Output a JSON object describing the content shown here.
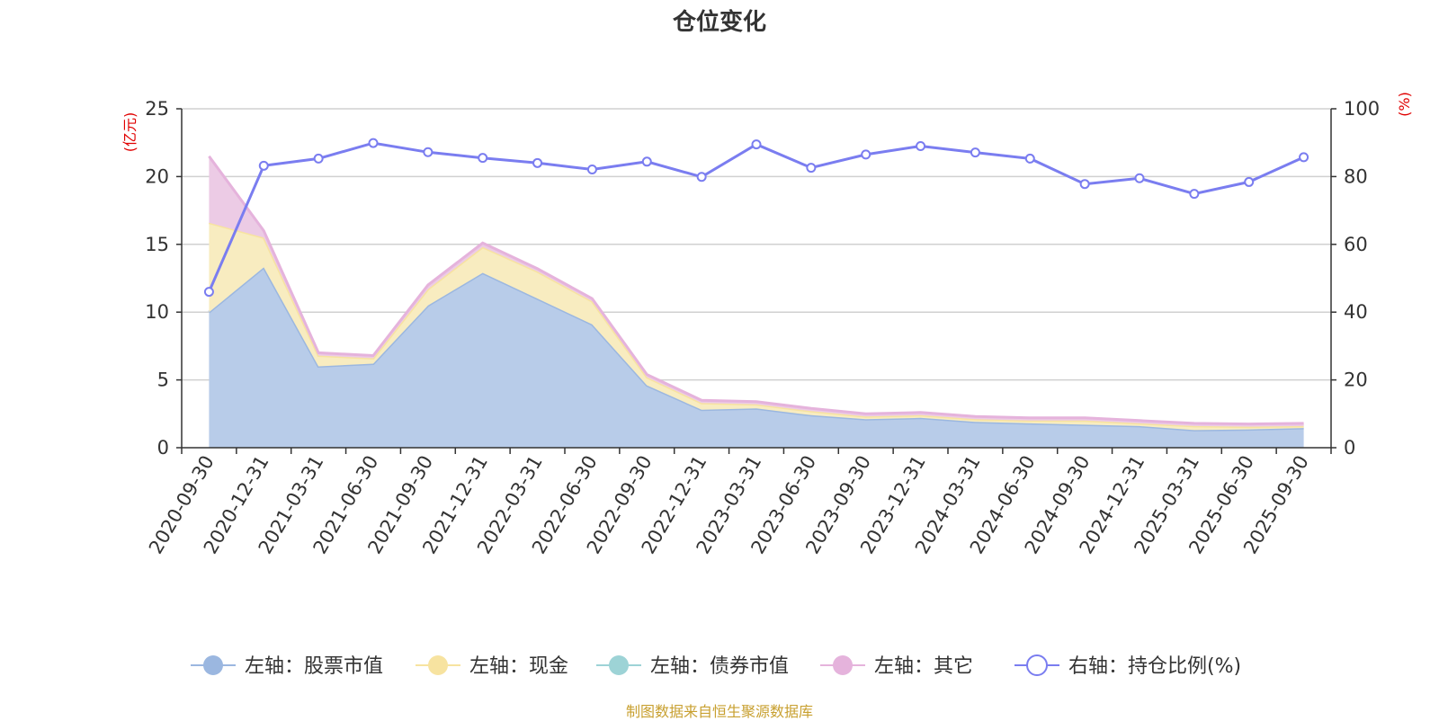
{
  "chart_data": {
    "type": "area",
    "title": "仓位变化",
    "left_axis_unit": "(亿元)",
    "right_axis_unit": "(%)",
    "categories": [
      "2020-09-30",
      "2020-12-31",
      "2021-03-31",
      "2021-06-30",
      "2021-09-30",
      "2021-12-31",
      "2022-03-31",
      "2022-06-30",
      "2022-09-30",
      "2022-12-31",
      "2023-03-31",
      "2023-06-30",
      "2023-09-30",
      "2023-12-31",
      "2024-03-31",
      "2024-06-30",
      "2024-09-30",
      "2024-12-31",
      "2025-03-31",
      "2025-06-30",
      "2025-09-30"
    ],
    "left_ylim": [
      0,
      25
    ],
    "left_ticks": [
      0,
      5,
      10,
      15,
      20,
      25
    ],
    "right_ylim": [
      0,
      100
    ],
    "right_ticks": [
      0,
      20,
      40,
      60,
      80,
      100
    ],
    "grid": true,
    "legend_position": "bottom",
    "series": [
      {
        "name": "左轴：股票市值",
        "axis": "left",
        "stack": true,
        "color": "#9bb7e0",
        "fill": "#b8cce9",
        "values": [
          10.0,
          13.3,
          6.0,
          6.2,
          10.5,
          12.9,
          11.0,
          9.1,
          4.6,
          2.8,
          2.9,
          2.4,
          2.1,
          2.2,
          1.9,
          1.8,
          1.7,
          1.6,
          1.3,
          1.35,
          1.45
        ]
      },
      {
        "name": "左轴：现金",
        "axis": "left",
        "stack": true,
        "color": "#f7e3a0",
        "fill": "#f8ecc0",
        "values": [
          6.6,
          2.2,
          0.8,
          0.4,
          1.2,
          1.9,
          2.0,
          1.7,
          0.6,
          0.5,
          0.3,
          0.3,
          0.2,
          0.2,
          0.2,
          0.2,
          0.3,
          0.2,
          0.3,
          0.2,
          0.15
        ]
      },
      {
        "name": "左轴：债券市值",
        "axis": "left",
        "stack": true,
        "color": "#9dd3d6",
        "fill": "#b5e1e3",
        "values": [
          0,
          0,
          0,
          0,
          0,
          0,
          0,
          0,
          0,
          0,
          0,
          0,
          0,
          0,
          0,
          0,
          0,
          0,
          0,
          0,
          0
        ]
      },
      {
        "name": "左轴：其它",
        "axis": "left",
        "stack": true,
        "color": "#e5b3dc",
        "fill": "#eccbe5",
        "values": [
          4.9,
          0.5,
          0.2,
          0.2,
          0.3,
          0.3,
          0.2,
          0.2,
          0.2,
          0.2,
          0.2,
          0.2,
          0.2,
          0.2,
          0.2,
          0.2,
          0.2,
          0.2,
          0.2,
          0.2,
          0.2
        ]
      },
      {
        "name": "右轴：持仓比例(%)",
        "axis": "right",
        "stack": false,
        "color": "#7a7df0",
        "values": [
          46.0,
          83.2,
          85.3,
          89.9,
          87.2,
          85.5,
          84.0,
          82.1,
          84.4,
          79.9,
          89.5,
          82.6,
          86.5,
          89.0,
          87.1,
          85.3,
          77.8,
          79.5,
          74.9,
          78.4,
          85.7
        ]
      }
    ]
  },
  "source_note": "制图数据来自恒生聚源数据库"
}
